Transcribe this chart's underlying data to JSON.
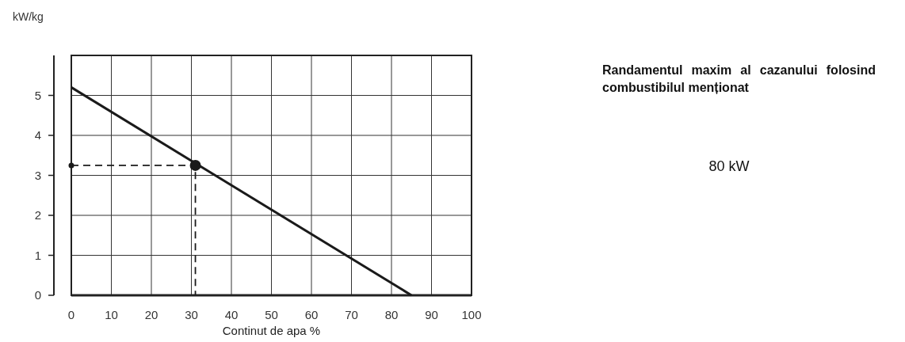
{
  "chart_data": {
    "type": "line",
    "title": "Randamentul maxim al cazanului folosind combustibilul menționat",
    "xlabel": "Continut de apa %",
    "ylabel": "kW/kg",
    "annotations": [
      "80 kW"
    ],
    "xlim": [
      0,
      100
    ],
    "xticks": [
      0,
      10,
      20,
      30,
      40,
      50,
      60,
      70,
      80,
      90,
      100
    ],
    "ylim": [
      0,
      6
    ],
    "yticks": [
      0,
      1,
      2,
      3,
      4,
      5
    ],
    "grid": true,
    "series": [
      {
        "color": "#1a1a1a",
        "x": [
          0,
          85
        ],
        "values": [
          5.2,
          0
        ],
        "line_style": "solid",
        "marker": "none"
      },
      {
        "color": "#1a1a1a",
        "x": [
          0,
          31,
          31
        ],
        "values": [
          3.25,
          3.25,
          0
        ],
        "line_style": "dashed",
        "marker": "none"
      },
      {
        "type": "scatter",
        "color": "#1a1a1a",
        "x": [
          0,
          31
        ],
        "values": [
          3.25,
          3.25
        ],
        "marker": "circle"
      }
    ]
  }
}
